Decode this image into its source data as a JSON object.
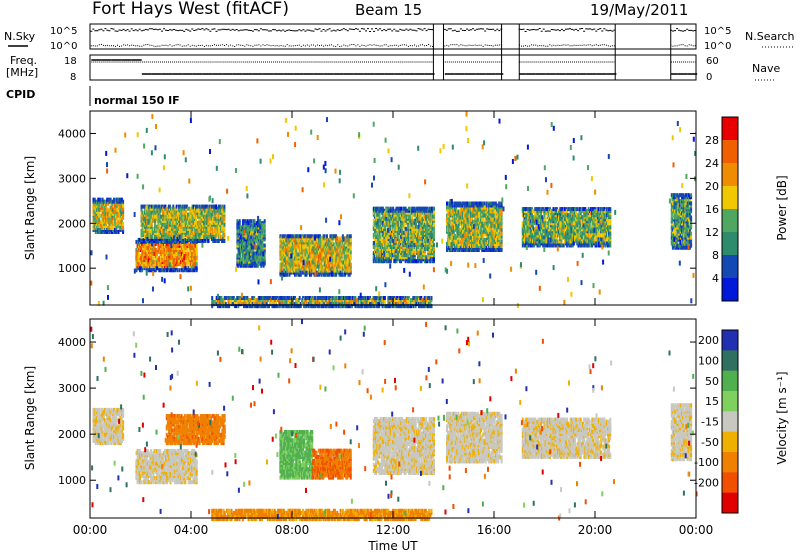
{
  "header": {
    "station": "Fort Hays West (fitACF)",
    "beam": "Beam 15",
    "date": "19/May/2011"
  },
  "aux_panel": {
    "left_labels": [
      "N.Sky",
      "Freq.",
      "[MHz]",
      "CPID"
    ],
    "right_labels": [
      "N.Search",
      "Nave"
    ],
    "noise_ticks_left": [
      "10^5",
      "10^0"
    ],
    "noise_ticks_right": [
      "10^5",
      "10^0"
    ],
    "freq_ticks": [
      "18",
      "8"
    ],
    "nave_ticks": [
      "60",
      "0"
    ],
    "cpid_text": "normal 150 IF"
  },
  "colors": {
    "power_scale": [
      "#0018d8",
      "#1448b4",
      "#2e8c6c",
      "#50a860",
      "#f0c800",
      "#f08c00",
      "#f06000",
      "#e80000"
    ],
    "velocity_scale": [
      "#2030b0",
      "#307060",
      "#50b050",
      "#80d060",
      "#c8c8c0",
      "#f0b000",
      "#f08000",
      "#f05000",
      "#e00000"
    ]
  },
  "chart_data": [
    {
      "type": "heatmap",
      "panel": "power",
      "ylabel": "Slant Range [km]",
      "colorbar_label": "Power [dB]",
      "colorbar_ticks": [
        "28",
        "24",
        "20",
        "16",
        "12",
        "8",
        "4"
      ],
      "x_ticks": [
        "00:00",
        "04:00",
        "08:00",
        "12:00",
        "16:00",
        "20:00",
        "00:00"
      ],
      "y_ticks": [
        "1000",
        "2000",
        "3000",
        "4000"
      ],
      "xlim": [
        0,
        24
      ],
      "ylim": [
        180,
        4500
      ],
      "regions": [
        {
          "t0": 0.1,
          "t1": 1.3,
          "r0": 1850,
          "r1": 2600,
          "v": 18
        },
        {
          "t0": 1.8,
          "t1": 4.2,
          "r0": 1000,
          "r1": 1700,
          "v": 22
        },
        {
          "t0": 2.0,
          "t1": 5.3,
          "r0": 1650,
          "r1": 2450,
          "v": 16
        },
        {
          "t0": 5.8,
          "t1": 6.9,
          "r0": 1100,
          "r1": 2100,
          "v": 10
        },
        {
          "t0": 7.5,
          "t1": 10.3,
          "r0": 900,
          "r1": 1800,
          "v": 18
        },
        {
          "t0": 11.2,
          "t1": 13.6,
          "r0": 1200,
          "r1": 2400,
          "v": 14
        },
        {
          "t0": 14.1,
          "t1": 16.3,
          "r0": 1450,
          "r1": 2500,
          "v": 16
        },
        {
          "t0": 17.1,
          "t1": 20.6,
          "r0": 1550,
          "r1": 2400,
          "v": 14
        },
        {
          "t0": 23.0,
          "t1": 23.8,
          "r0": 1500,
          "r1": 2700,
          "v": 12
        },
        {
          "t0": 4.8,
          "t1": 13.5,
          "r0": 200,
          "r1": 420,
          "v": 18
        }
      ]
    },
    {
      "type": "heatmap",
      "panel": "velocity",
      "ylabel": "Slant Range [km]",
      "colorbar_label": "Velocity [m s⁻¹]",
      "colorbar_ticks": [
        "200",
        "100",
        "50",
        "15",
        "-15",
        "-50",
        "-100",
        "-200"
      ],
      "x_ticks": [
        "00:00",
        "04:00",
        "08:00",
        "12:00",
        "16:00",
        "20:00",
        "00:00"
      ],
      "xlabel": "Time UT",
      "y_ticks": [
        "1000",
        "2000",
        "3000",
        "4000"
      ],
      "xlim": [
        0,
        24
      ],
      "ylim": [
        180,
        4500
      ],
      "regions": [
        {
          "t0": 0.1,
          "t1": 1.3,
          "r0": 1850,
          "r1": 2600,
          "v": -5
        },
        {
          "t0": 1.8,
          "t1": 4.2,
          "r0": 1000,
          "r1": 1700,
          "v": -5
        },
        {
          "t0": 3.0,
          "t1": 5.3,
          "r0": 1850,
          "r1": 2450,
          "v": -60
        },
        {
          "t0": 7.5,
          "t1": 8.8,
          "r0": 1100,
          "r1": 2100,
          "v": 40
        },
        {
          "t0": 8.8,
          "t1": 10.3,
          "r0": 1100,
          "r1": 1700,
          "v": -70
        },
        {
          "t0": 11.2,
          "t1": 13.6,
          "r0": 1200,
          "r1": 2400,
          "v": -5
        },
        {
          "t0": 14.1,
          "t1": 16.3,
          "r0": 1450,
          "r1": 2500,
          "v": -5
        },
        {
          "t0": 17.1,
          "t1": 20.6,
          "r0": 1550,
          "r1": 2400,
          "v": -5
        },
        {
          "t0": 23.0,
          "t1": 23.8,
          "r0": 1500,
          "r1": 2700,
          "v": -5
        },
        {
          "t0": 4.8,
          "t1": 13.5,
          "r0": 200,
          "r1": 420,
          "v": -40
        }
      ]
    }
  ]
}
